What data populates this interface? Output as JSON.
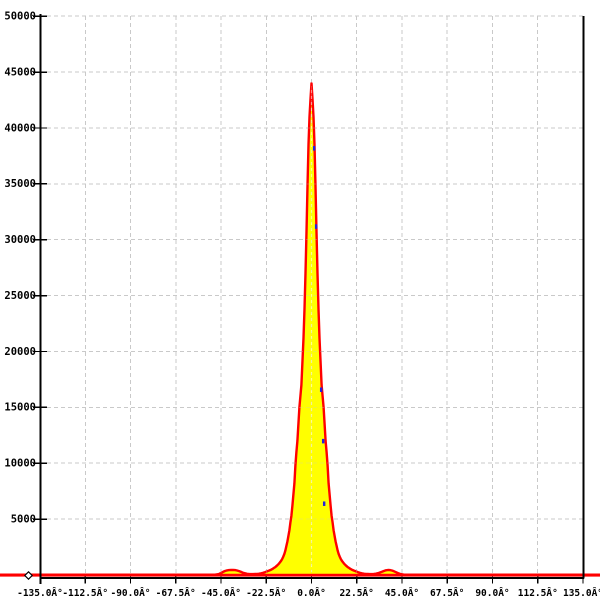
{
  "window": {
    "background": "#ffffff"
  },
  "chart_data": {
    "type": "area",
    "title": "",
    "xlabel": "",
    "ylabel": "",
    "xlim": [
      -135,
      135
    ],
    "ylim": [
      0,
      50000
    ],
    "grid": true,
    "legend": false,
    "x_ticks": {
      "values": [
        -135,
        -112.5,
        -90,
        -67.5,
        -45,
        -22.5,
        0,
        22.5,
        45,
        67.5,
        90,
        112.5,
        135
      ],
      "labels": [
        "-135.0Â°",
        "-112.5Â°",
        "-90.0Â°",
        "-67.5Â°",
        "-45.0Â°",
        "-22.5Â°",
        "0.0Â°",
        "22.5Â°",
        "45.0Â°",
        "67.5Â°",
        "90.0Â°",
        "112.5Â°",
        "135.0Â°"
      ]
    },
    "y_ticks": {
      "values": [
        50000,
        45000,
        40000,
        35000,
        30000,
        25000,
        20000,
        15000,
        10000,
        5000
      ],
      "labels": [
        "50000",
        "45000",
        "40000",
        "35000",
        "30000",
        "25000",
        "20000",
        "15000",
        "10000",
        "5000"
      ]
    },
    "peak": {
      "x_deg": 0.0,
      "value": 44000
    },
    "side_bumps": [
      {
        "x_deg": -39,
        "value": 450
      },
      {
        "x_deg": 38,
        "value": 450
      }
    ],
    "colors": {
      "fill": "#ffff00",
      "outline": "#ff0000",
      "baseline": "#ff0000",
      "grid": "#c9c9c9",
      "axis": "#000000",
      "secondary": "#2222dd",
      "marker_fill": "#ffffff",
      "marker_stroke": "#000000"
    },
    "series": [
      {
        "name": "angle-distribution",
        "type": "area",
        "fill": "#ffff00",
        "stroke": "#ff0000",
        "points": [
          [
            -135,
            0
          ],
          [
            -60,
            0
          ],
          [
            -50,
            0
          ],
          [
            -48,
            30
          ],
          [
            -46,
            90
          ],
          [
            -45,
            180
          ],
          [
            -44,
            280
          ],
          [
            -43,
            360
          ],
          [
            -42,
            410
          ],
          [
            -41,
            440
          ],
          [
            -40,
            450
          ],
          [
            -39,
            450
          ],
          [
            -38,
            440
          ],
          [
            -37,
            400
          ],
          [
            -36,
            350
          ],
          [
            -35,
            280
          ],
          [
            -34,
            200
          ],
          [
            -33,
            150
          ],
          [
            -32,
            110
          ],
          [
            -31,
            90
          ],
          [
            -30,
            80
          ],
          [
            -29,
            80
          ],
          [
            -28,
            90
          ],
          [
            -27,
            100
          ],
          [
            -26,
            120
          ],
          [
            -25,
            150
          ],
          [
            -24,
            200
          ],
          [
            -23,
            260
          ],
          [
            -22,
            330
          ],
          [
            -21,
            400
          ],
          [
            -20,
            480
          ],
          [
            -19.5,
            530
          ],
          [
            -19,
            590
          ],
          [
            -18.5,
            650
          ],
          [
            -18,
            710
          ],
          [
            -17.5,
            790
          ],
          [
            -17,
            870
          ],
          [
            -16.5,
            960
          ],
          [
            -16,
            1060
          ],
          [
            -15.5,
            1170
          ],
          [
            -15,
            1300
          ],
          [
            -14.5,
            1450
          ],
          [
            -14,
            1650
          ],
          [
            -13.5,
            1900
          ],
          [
            -13,
            2200
          ],
          [
            -12.5,
            2600
          ],
          [
            -12,
            3000
          ],
          [
            -11.5,
            3500
          ],
          [
            -11,
            4000
          ],
          [
            -10.5,
            4700
          ],
          [
            -10,
            5300
          ],
          [
            -9.5,
            6200
          ],
          [
            -9,
            7200
          ],
          [
            -8.5,
            8200
          ],
          [
            -8,
            9800
          ],
          [
            -7.5,
            11000
          ],
          [
            -7,
            12000
          ],
          [
            -6.5,
            13500
          ],
          [
            -6,
            15000
          ],
          [
            -5.5,
            16000
          ],
          [
            -5,
            17000
          ],
          [
            -4.5,
            19200
          ],
          [
            -4,
            21200
          ],
          [
            -3.5,
            23800
          ],
          [
            -3,
            27000
          ],
          [
            -2.5,
            30700
          ],
          [
            -2,
            34800
          ],
          [
            -1.5,
            38500
          ],
          [
            -1,
            41000
          ],
          [
            -0.5,
            42600
          ],
          [
            0,
            44000
          ],
          [
            0.5,
            42600
          ],
          [
            1,
            41000
          ],
          [
            1.5,
            38500
          ],
          [
            2,
            34800
          ],
          [
            2.5,
            30700
          ],
          [
            3,
            27000
          ],
          [
            3.5,
            23800
          ],
          [
            4,
            21200
          ],
          [
            4.5,
            19200
          ],
          [
            5,
            17000
          ],
          [
            5.5,
            16000
          ],
          [
            6,
            15000
          ],
          [
            6.5,
            13500
          ],
          [
            7,
            12000
          ],
          [
            7.5,
            11000
          ],
          [
            8,
            9800
          ],
          [
            8.5,
            8200
          ],
          [
            9,
            7200
          ],
          [
            9.5,
            6200
          ],
          [
            10,
            5300
          ],
          [
            10.5,
            4700
          ],
          [
            11,
            4000
          ],
          [
            11.5,
            3500
          ],
          [
            12,
            3000
          ],
          [
            12.5,
            2600
          ],
          [
            13,
            2200
          ],
          [
            13.5,
            1900
          ],
          [
            14,
            1650
          ],
          [
            14.5,
            1450
          ],
          [
            15,
            1300
          ],
          [
            15.5,
            1170
          ],
          [
            16,
            1060
          ],
          [
            16.5,
            960
          ],
          [
            17,
            870
          ],
          [
            17.5,
            790
          ],
          [
            18,
            710
          ],
          [
            18.5,
            650
          ],
          [
            19,
            590
          ],
          [
            19.5,
            530
          ],
          [
            20,
            480
          ],
          [
            21,
            400
          ],
          [
            22,
            330
          ],
          [
            23,
            260
          ],
          [
            24,
            200
          ],
          [
            25,
            150
          ],
          [
            26,
            120
          ],
          [
            27,
            100
          ],
          [
            28,
            90
          ],
          [
            29,
            80
          ],
          [
            30,
            80
          ],
          [
            31,
            90
          ],
          [
            32,
            120
          ],
          [
            33,
            160
          ],
          [
            34,
            220
          ],
          [
            35,
            290
          ],
          [
            36,
            360
          ],
          [
            37,
            420
          ],
          [
            38,
            450
          ],
          [
            39,
            440
          ],
          [
            40,
            400
          ],
          [
            41,
            330
          ],
          [
            42,
            250
          ],
          [
            43,
            170
          ],
          [
            44,
            100
          ],
          [
            45,
            60
          ],
          [
            46,
            30
          ],
          [
            47,
            10
          ],
          [
            48,
            0
          ],
          [
            60,
            0
          ],
          [
            135,
            0
          ]
        ]
      },
      {
        "name": "secondary-blue-marks",
        "type": "scatter",
        "color": "#2222dd",
        "points": [
          [
            1.2,
            38200
          ],
          [
            2.2,
            31200
          ],
          [
            4.7,
            16600
          ],
          [
            5.7,
            12000
          ],
          [
            6.2,
            6400
          ]
        ]
      }
    ]
  }
}
